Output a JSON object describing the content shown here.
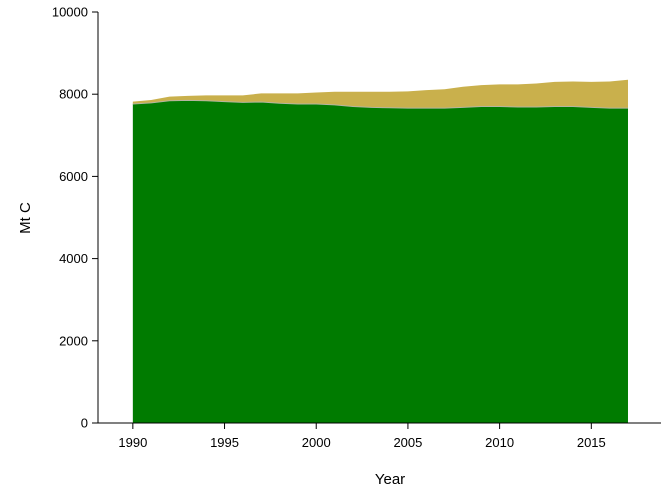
{
  "chart_data": {
    "type": "area",
    "stacked": true,
    "xlabel": "Year",
    "ylabel": "Mt C",
    "xlim": [
      1990,
      2017
    ],
    "ylim": [
      0,
      10000
    ],
    "xticks": [
      1990,
      1995,
      2000,
      2005,
      2010,
      2015
    ],
    "yticks": [
      0,
      2000,
      4000,
      6000,
      8000,
      10000
    ],
    "grid": false,
    "legend": "none",
    "x": [
      1990,
      1991,
      1992,
      1993,
      1994,
      1995,
      1996,
      1997,
      1998,
      1999,
      2000,
      2001,
      2002,
      2003,
      2004,
      2005,
      2006,
      2007,
      2008,
      2009,
      2010,
      2011,
      2012,
      2013,
      2014,
      2015,
      2016,
      2017
    ],
    "series": [
      {
        "color": "#007b00",
        "values": [
          7760,
          7790,
          7840,
          7850,
          7840,
          7820,
          7800,
          7810,
          7780,
          7760,
          7760,
          7740,
          7700,
          7680,
          7670,
          7660,
          7660,
          7660,
          7680,
          7700,
          7700,
          7690,
          7690,
          7700,
          7700,
          7680,
          7660,
          7660
        ]
      },
      {
        "color": "#c9b04c",
        "values": [
          60,
          70,
          100,
          110,
          130,
          150,
          170,
          210,
          240,
          260,
          280,
          320,
          360,
          380,
          390,
          410,
          440,
          460,
          500,
          520,
          540,
          550,
          570,
          600,
          610,
          620,
          650,
          690
        ]
      }
    ]
  }
}
